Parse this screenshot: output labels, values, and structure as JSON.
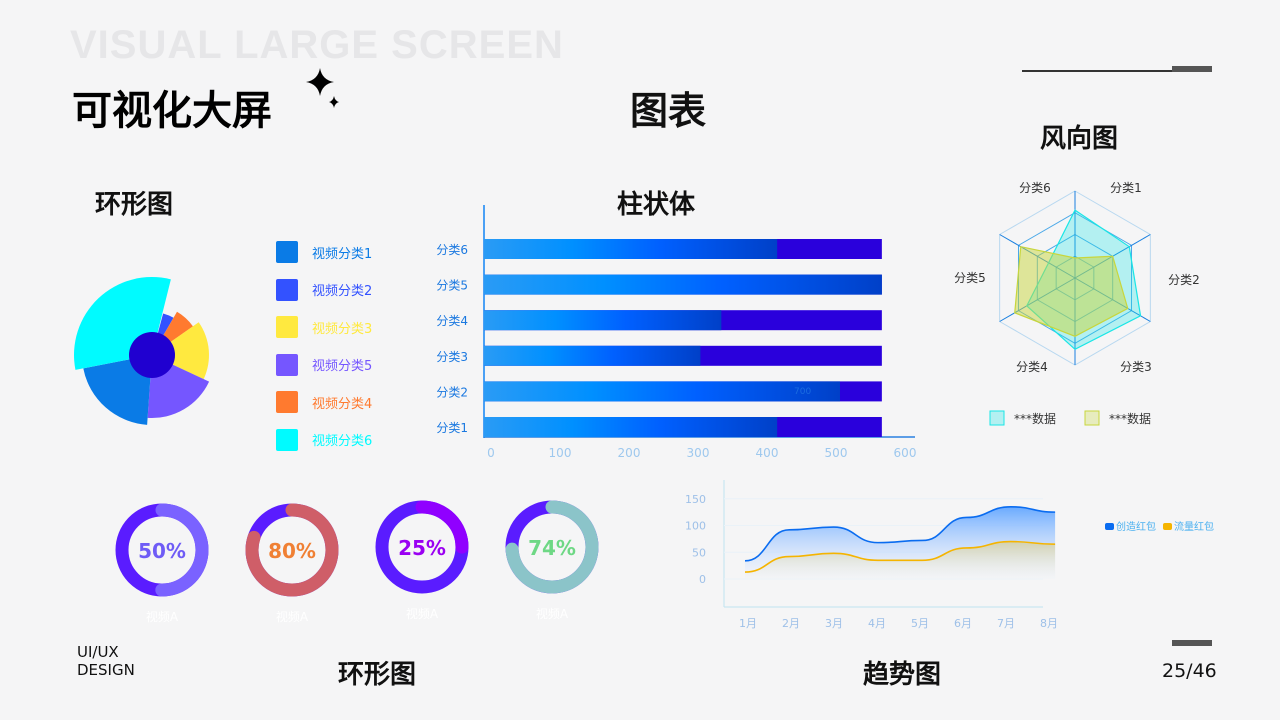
{
  "header": {
    "watermark": "VISUAL LARGE SCREEN",
    "title": "可视化大屏",
    "center_title": "图表",
    "brand": "UI/UX\nDESIGN",
    "page": "25/46"
  },
  "sections": {
    "rose": "环形图",
    "bar": "柱状体",
    "radar": "风向图",
    "rings": "环形图",
    "trend": "趋势图"
  },
  "colors": {
    "accent": "#0a6cf0",
    "dark": "#2200d8"
  },
  "chart_data": [
    {
      "type": "pie",
      "variant": "rose",
      "items": [
        {
          "name": "视频分类1",
          "color": "#0a7be6",
          "value": 70,
          "angle": 75
        },
        {
          "name": "视频分类2",
          "color": "#3352ff",
          "value": 43,
          "angle": 15
        },
        {
          "name": "视频分类3",
          "color": "#ffe93f",
          "value": 57,
          "angle": 60
        },
        {
          "name": "视频分类5",
          "color": "#7556ff",
          "value": 63,
          "angle": 69
        },
        {
          "name": "视频分类4",
          "color": "#ff7a2f",
          "value": 50,
          "angle": 25
        },
        {
          "name": "视频分类6",
          "color": "#00fbff",
          "value": 78,
          "angle": 115
        }
      ]
    },
    {
      "type": "bar",
      "orientation": "horizontal",
      "categories": [
        "分类1",
        "分类2",
        "分类3",
        "分类4",
        "分类5",
        "分类6"
      ],
      "series": [
        {
          "values": [
            420,
            510,
            310,
            340,
            570,
            420
          ]
        },
        {
          "values": [
            570,
            570,
            570,
            570,
            570,
            570
          ]
        }
      ],
      "xticks": [
        "0",
        "100",
        "200",
        "300",
        "400",
        "500",
        "600"
      ],
      "xlim": [
        0,
        600
      ],
      "annotation": "700"
    },
    {
      "type": "radar",
      "indicators": [
        "分类1",
        "分类2",
        "分类3",
        "分类4",
        "分类5",
        "分类6"
      ],
      "series": [
        {
          "name": "***数据",
          "color": "#19e6e6",
          "values": [
            0.78,
            0.72,
            0.87,
            0.82,
            0.64,
            0.35
          ]
        },
        {
          "name": "***数据",
          "color": "#c8d63c",
          "values": [
            0.23,
            0.5,
            0.7,
            0.67,
            0.8,
            0.72
          ]
        }
      ]
    },
    {
      "type": "pie",
      "variant": "ring",
      "items": [
        {
          "label": "50%",
          "value": 50,
          "caption": "视频A",
          "color": "#7a62ff",
          "text": "#6f5cf6"
        },
        {
          "label": "80%",
          "value": 80,
          "caption": "视频A",
          "color": "#cf5e68",
          "text": "#f08034"
        },
        {
          "label": "25%",
          "value": 25,
          "caption": "视频A",
          "color": "#9000ff",
          "text": "#9a00f2"
        },
        {
          "label": "74%",
          "value": 74,
          "caption": "视频A",
          "color": "#8bc4c9",
          "text": "#6ed885"
        }
      ]
    },
    {
      "type": "area",
      "categories": [
        "1月",
        "2月",
        "3月",
        "4月",
        "5月",
        "6月",
        "7月",
        "8月"
      ],
      "yticks": [
        "0",
        "50",
        "100",
        "150"
      ],
      "ylim": [
        0,
        150
      ],
      "series": [
        {
          "name": "创造红包",
          "color": "#0a6cf0",
          "values": [
            34,
            92,
            97,
            68,
            72,
            115,
            135,
            125
          ]
        },
        {
          "name": "流量红包",
          "color": "#f5b400",
          "values": [
            13,
            42,
            48,
            35,
            35,
            58,
            70,
            65
          ]
        }
      ]
    }
  ]
}
